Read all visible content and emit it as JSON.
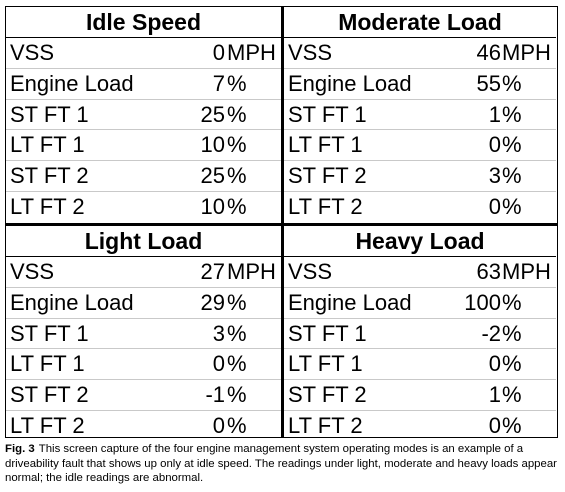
{
  "panels": [
    {
      "title": "Idle Speed",
      "rows": [
        {
          "label": "VSS",
          "value": "0",
          "unit": "MPH"
        },
        {
          "label": "Engine Load",
          "value": "7",
          "unit": "%"
        },
        {
          "label": "ST FT 1",
          "value": "25",
          "unit": "%"
        },
        {
          "label": "LT FT 1",
          "value": "10",
          "unit": "%"
        },
        {
          "label": "ST FT 2",
          "value": "25",
          "unit": "%"
        },
        {
          "label": "LT FT 2",
          "value": "10",
          "unit": "%"
        }
      ]
    },
    {
      "title": "Moderate Load",
      "rows": [
        {
          "label": "VSS",
          "value": "46",
          "unit": "MPH"
        },
        {
          "label": "Engine Load",
          "value": "55",
          "unit": "%"
        },
        {
          "label": "ST FT 1",
          "value": "1",
          "unit": "%"
        },
        {
          "label": "LT FT 1",
          "value": "0",
          "unit": "%"
        },
        {
          "label": "ST FT 2",
          "value": "3",
          "unit": "%"
        },
        {
          "label": "LT FT 2",
          "value": "0",
          "unit": "%"
        }
      ]
    },
    {
      "title": "Light Load",
      "rows": [
        {
          "label": "VSS",
          "value": "27",
          "unit": "MPH"
        },
        {
          "label": "Engine Load",
          "value": "29",
          "unit": "%"
        },
        {
          "label": "ST FT 1",
          "value": "3",
          "unit": "%"
        },
        {
          "label": "LT FT 1",
          "value": "0",
          "unit": "%"
        },
        {
          "label": "ST FT 2",
          "value": "-1",
          "unit": "%"
        },
        {
          "label": "LT FT 2",
          "value": "0",
          "unit": "%"
        }
      ]
    },
    {
      "title": "Heavy Load",
      "rows": [
        {
          "label": "VSS",
          "value": "63",
          "unit": "MPH"
        },
        {
          "label": "Engine Load",
          "value": "100",
          "unit": "%"
        },
        {
          "label": "ST FT 1",
          "value": "-2",
          "unit": "%"
        },
        {
          "label": "LT FT 1",
          "value": "0",
          "unit": "%"
        },
        {
          "label": "ST FT 2",
          "value": "1",
          "unit": "%"
        },
        {
          "label": "LT FT 2",
          "value": "0",
          "unit": "%"
        }
      ]
    }
  ],
  "caption": {
    "fig_label": "Fig. 3",
    "text": "This screen capture of the four engine management system operating modes is an example of a driveability fault that shows up only at idle speed. The readings under light, moderate and heavy loads appear normal; the idle readings are abnormal."
  }
}
